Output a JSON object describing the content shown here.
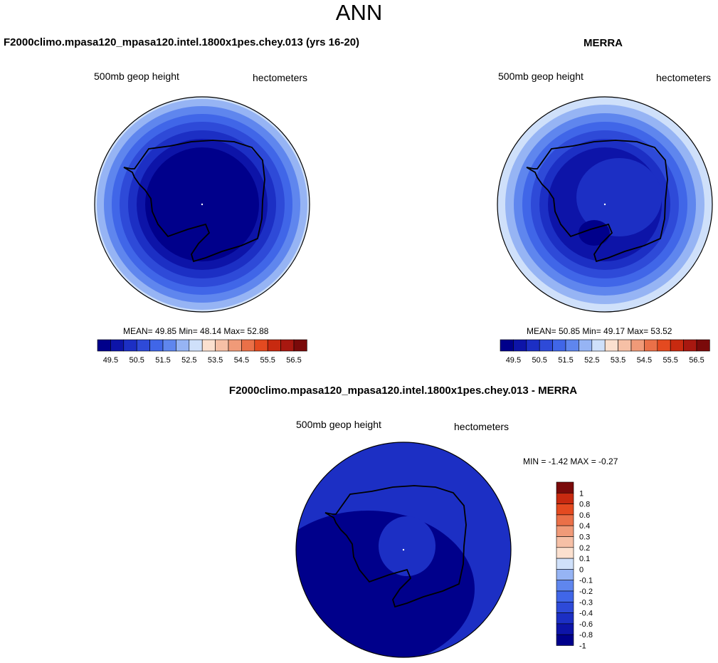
{
  "header": {
    "title": "ANN"
  },
  "panels": [
    {
      "title": "F2000climo.mpasa120_mpasa120.intel.1800x1pes.chey.013 (yrs 16-20)",
      "left_label": "500mb geop height",
      "right_label": "hectometers",
      "stats": "MEAN=  49.85  Min=  48.14  Max=  52.88"
    },
    {
      "title": "MERRA",
      "left_label": "500mb geop height",
      "right_label": "hectometers",
      "stats": "MEAN=  50.85  Min=  49.17  Max=  53.52"
    },
    {
      "title": "F2000climo.mpasa120_mpasa120.intel.1800x1pes.chey.013 - MERRA",
      "left_label": "500mb geop height",
      "right_label": "hectometers",
      "stats": "MIN =  -1.42 MAX =  -0.27"
    }
  ],
  "colors": {
    "abs": [
      "#00008b",
      "#0d14a8",
      "#1c2fc4",
      "#2e4ad8",
      "#4066e8",
      "#5f86ee",
      "#96b4f4",
      "#cfe0fa",
      "#fbe0cf",
      "#f6c0a6",
      "#f09a78",
      "#ea7048",
      "#e44a20",
      "#c82a10",
      "#a81810",
      "#7a0a0a"
    ],
    "diff": [
      "#00008b",
      "#0d14a8",
      "#1c2fc4",
      "#2e4ad8",
      "#4066e8",
      "#5f86ee",
      "#96b4f4",
      "#cfe0fa",
      "#fbe0cf",
      "#f6c0a6",
      "#f09a78",
      "#ea7048",
      "#e44a20",
      "#c82a10",
      "#7a0a0a"
    ]
  },
  "chart_data": [
    {
      "type": "map",
      "projection": "south polar stereographic",
      "variable": "500mb geop height",
      "units": "hectometers",
      "mean": 49.85,
      "min": 48.14,
      "max": 52.88,
      "levels": [
        "49.5",
        "50.5",
        "51.5",
        "52.5",
        "53.5",
        "54.5",
        "55.5",
        "56.5"
      ]
    },
    {
      "type": "map",
      "projection": "south polar stereographic",
      "variable": "500mb geop height",
      "units": "hectometers",
      "mean": 50.85,
      "min": 49.17,
      "max": 53.52,
      "levels": [
        "49.5",
        "50.5",
        "51.5",
        "52.5",
        "53.5",
        "54.5",
        "55.5",
        "56.5"
      ]
    },
    {
      "type": "map",
      "projection": "south polar stereographic",
      "variable": "500mb geop height",
      "units": "hectometers",
      "min": -1.42,
      "max": -0.27,
      "levels": [
        "-1",
        "-0.8",
        "-0.6",
        "-0.4",
        "-0.3",
        "-0.2",
        "-0.1",
        "0",
        "0.1",
        "0.2",
        "0.3",
        "0.4",
        "0.6",
        "0.8",
        "1"
      ]
    }
  ]
}
